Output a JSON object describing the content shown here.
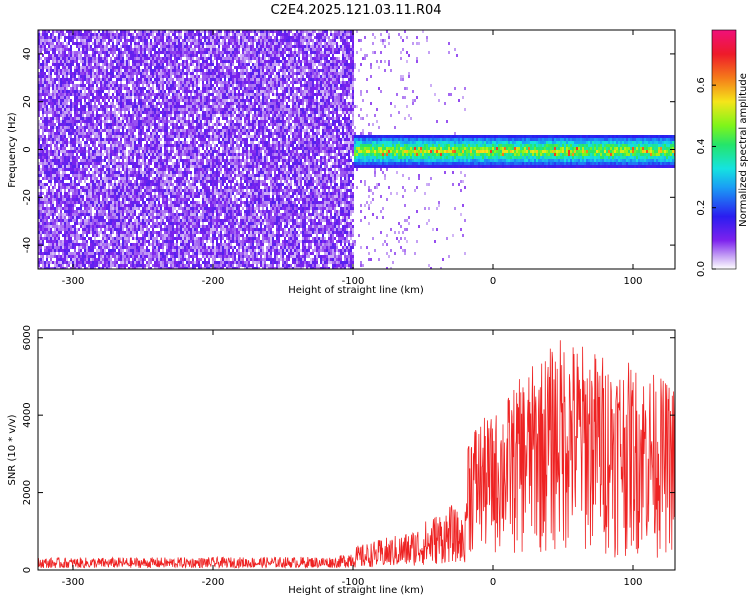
{
  "title": "C2E4.2025.121.03.11.R04",
  "colors": {
    "snr_line": "#ee2222",
    "background": "#ffffff",
    "axis": "#000000"
  },
  "chart_data": [
    {
      "type": "heatmap",
      "xlabel": "Height of straight line (km)",
      "ylabel": "Frequency (Hz)",
      "xlim": [
        -325,
        130
      ],
      "ylim": [
        -50,
        50
      ],
      "x_ticks": [
        -300,
        -200,
        -100,
        0,
        100
      ],
      "y_ticks": [
        -40,
        -20,
        0,
        20,
        40
      ],
      "colorbar": {
        "label": "Normalized spectral amplitude",
        "range": [
          0,
          0.78
        ],
        "ticks": [
          0.0,
          0.2,
          0.4,
          0.6
        ],
        "colormap": "rainbow (white/violet → blue → cyan → green → yellow → red → magenta)"
      },
      "features": {
        "noise_region_x": [
          -325,
          -100
        ],
        "signal_band_center_hz": 0,
        "signal_band_halfwidth_hz": 7,
        "signal_region_x": [
          -110,
          130
        ]
      }
    },
    {
      "type": "line",
      "xlabel": "Height of straight line (km)",
      "ylabel": "SNR (10 * v/v)",
      "xlim": [
        -325,
        130
      ],
      "ylim": [
        0,
        6200
      ],
      "x_ticks": [
        -300,
        -200,
        -100,
        0,
        100
      ],
      "y_ticks": [
        0,
        2000,
        4000,
        6000
      ],
      "envelope": [
        {
          "x": -325,
          "min": 50,
          "max": 320
        },
        {
          "x": -200,
          "min": 60,
          "max": 330
        },
        {
          "x": -110,
          "min": 60,
          "max": 350
        },
        {
          "x": -100,
          "min": 60,
          "max": 600
        },
        {
          "x": -80,
          "min": 80,
          "max": 800
        },
        {
          "x": -60,
          "min": 100,
          "max": 1000
        },
        {
          "x": -40,
          "min": 150,
          "max": 1500
        },
        {
          "x": -30,
          "min": 200,
          "max": 1700
        },
        {
          "x": -20,
          "min": 200,
          "max": 1300
        },
        {
          "x": -18,
          "min": 300,
          "max": 3800
        },
        {
          "x": 0,
          "min": 300,
          "max": 4000
        },
        {
          "x": 20,
          "min": 300,
          "max": 5000
        },
        {
          "x": 50,
          "min": 300,
          "max": 6100
        },
        {
          "x": 80,
          "min": 300,
          "max": 5600
        },
        {
          "x": 110,
          "min": 300,
          "max": 5200
        },
        {
          "x": 130,
          "min": 300,
          "max": 4800
        }
      ]
    }
  ]
}
